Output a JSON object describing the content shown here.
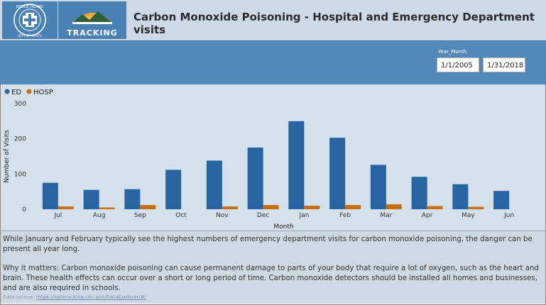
{
  "header": {
    "title": "Carbon Monoxide Poisoning - Hospital and Emergency Department visits",
    "tracking_label": "TRACKING",
    "seal_text": "RHODE ISLAND DEPARTMENT OF HEALTH"
  },
  "filter": {
    "label": "Year_Month",
    "start": "1/1/2005",
    "end": "1/31/2018"
  },
  "chart_data": {
    "type": "bar",
    "categories": [
      "Jul",
      "Aug",
      "Sep",
      "Oct",
      "Nov",
      "Dec",
      "Jan",
      "Feb",
      "Mar",
      "Apr",
      "May",
      "Jun"
    ],
    "series": [
      {
        "name": "ED",
        "color": "#2764a1",
        "values": [
          75,
          55,
          57,
          112,
          138,
          175,
          250,
          203,
          126,
          92,
          71,
          52
        ]
      },
      {
        "name": "HOSP",
        "color": "#c96f12",
        "values": [
          8,
          5,
          12,
          0,
          8,
          12,
          10,
          12,
          14,
          9,
          7,
          0
        ]
      }
    ],
    "xlabel": "Month",
    "ylabel": "Number of Visits",
    "y_ticks": [
      "0",
      "100",
      "200",
      "300"
    ],
    "ylim": [
      0,
      300
    ],
    "legend_position": "top-left"
  },
  "text": {
    "p1": "While January and February typically see the highest numbers of emergency department visits for carbon monoxide poisoning, the danger can be present all year long.",
    "p2": "Why it matters: Carbon monoxide poisoning can cause permanent damage to parts of your body that require a lot of oxygen, such as the heart and brain. These health effects can occur over a short or long period of time. Carbon monoxide detectors should be installed all homes and businesses, and are also required in schools.",
    "source_label": "Data source:",
    "source_link": "https://ephtracking.cdc.gov/DataExplorer/#/"
  }
}
